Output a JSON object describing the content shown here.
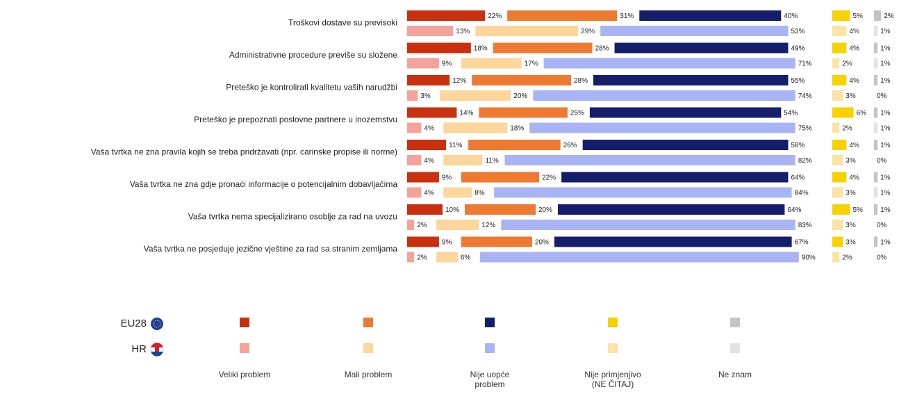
{
  "chart_data": {
    "type": "bar",
    "orientation": "horizontal",
    "stacked": true,
    "categories": [
      "Troškovi dostave su previsoki",
      "Administrativne procedure previše su složene",
      "Preteško je kontrolirati kvalitetu vaših narudžbi",
      "Preteško je prepoznati poslovne partnere u inozemstvu",
      "Vaša tvrtka ne zna pravila kojih se treba pridržavati (npr. carinske propise ili norme)",
      "Vaša tvrtka ne zna gdje pronaći informacije o potencijalnim dobavljačima",
      "Vaša tvrtka nema specijalizirano osoblje za rad na uvozu",
      "Vaša tvrtka ne posjeduje jezične vještine za rad sa stranim zemljama"
    ],
    "segments": [
      "Veliki problem",
      "Mali problem",
      "Nije uopće problem",
      "Nije primjenjivo (NE ČITAJ)",
      "Ne znam"
    ],
    "groups": [
      {
        "name": "EU28",
        "series": [
          {
            "color": "#c8300e",
            "values": [
              22,
              18,
              12,
              14,
              11,
              9,
              10,
              9
            ],
            "value_labels": [
              "22%",
              "18%",
              "12%",
              "14%",
              "11%",
              "9%",
              "10%",
              "9%"
            ]
          },
          {
            "color": "#ee7a32",
            "values": [
              31,
              28,
              28,
              25,
              26,
              22,
              20,
              20
            ],
            "value_labels": [
              "31%",
              "28%",
              "28%",
              "25%",
              "26%",
              "22%",
              "20%",
              "20%"
            ]
          },
          {
            "color": "#141e6a",
            "values": [
              40,
              49,
              55,
              54,
              58,
              64,
              64,
              67
            ],
            "value_labels": [
              "40%",
              "49%",
              "55%",
              "54%",
              "58%",
              "64%",
              "64%",
              "67%"
            ]
          },
          {
            "color": "#f5d200",
            "values": [
              5,
              4,
              4,
              6,
              4,
              4,
              5,
              3
            ],
            "value_labels": [
              "5%",
              "4%",
              "4%",
              "6%",
              "4%",
              "4%",
              "5%",
              "3%"
            ]
          },
          {
            "color": "#c4c4c4",
            "values": [
              2,
              1,
              1,
              1,
              1,
              1,
              1,
              1
            ],
            "value_labels": [
              "2%",
              "1%",
              "1%",
              "1%",
              "1%",
              "1%",
              "1%",
              "1%"
            ]
          }
        ]
      },
      {
        "name": "HR",
        "series": [
          {
            "color": "#f4a39a",
            "values": [
              13,
              9,
              3,
              4,
              4,
              4,
              2,
              2
            ],
            "value_labels": [
              "13%",
              "9%",
              "3%",
              "4%",
              "4%",
              "4%",
              "2%",
              "2%"
            ]
          },
          {
            "color": "#fcd69a",
            "values": [
              29,
              17,
              20,
              18,
              11,
              8,
              12,
              6
            ],
            "value_labels": [
              "29%",
              "17%",
              "20%",
              "18%",
              "11%",
              "8%",
              "12%",
              "6%"
            ]
          },
          {
            "color": "#a9b4f5",
            "values": [
              53,
              71,
              74,
              75,
              82,
              84,
              83,
              90
            ],
            "value_labels": [
              "53%",
              "71%",
              "74%",
              "75%",
              "82%",
              "84%",
              "83%",
              "90%"
            ]
          },
          {
            "color": "#fbe3a6",
            "values": [
              4,
              2,
              3,
              2,
              3,
              3,
              3,
              2
            ],
            "value_labels": [
              "4%",
              "2%",
              "3%",
              "2%",
              "3%",
              "3%",
              "3%",
              "2%"
            ]
          },
          {
            "color": "#e2e2e2",
            "values": [
              1,
              1,
              0,
              1,
              0,
              1,
              0,
              0
            ],
            "value_labels": [
              "1%",
              "1%",
              "0%",
              "1%",
              "0%",
              "1%",
              "0%",
              "0%"
            ]
          }
        ]
      }
    ]
  }
}
